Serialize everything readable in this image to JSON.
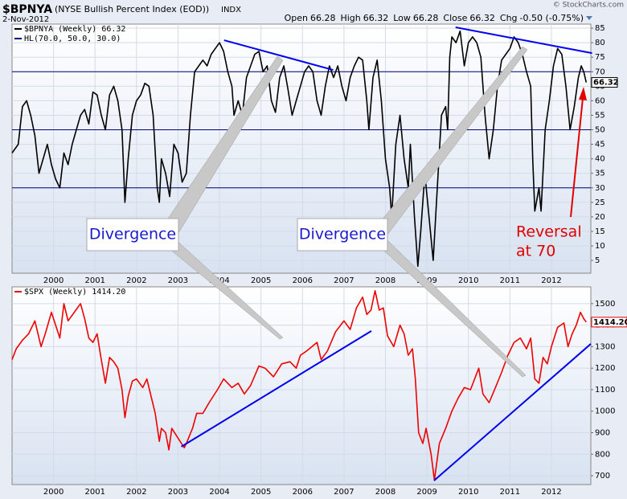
{
  "header": {
    "symbol": "$BPNYA",
    "name": "(NYSE Bullish Percent Index (EOD))",
    "exchange": "INDX",
    "date": "2-Nov-2012",
    "credit": "© StockCharts.com",
    "quote": [
      {
        "label": "Open",
        "value": "66.28"
      },
      {
        "label": "High",
        "value": "66.32"
      },
      {
        "label": "Low",
        "value": "66.28"
      },
      {
        "label": "Close",
        "value": "66.32"
      },
      {
        "label": "Chg",
        "value": "-0.50 (-0.75%)"
      }
    ]
  },
  "annotations": [
    {
      "text": "Divergence"
    },
    {
      "text": "Divergence"
    },
    {
      "lines": [
        "Reversal",
        "at 70"
      ]
    }
  ],
  "chart_data": [
    {
      "type": "line",
      "xlim": [
        1999.0,
        2012.95
      ],
      "xticks": [
        2000,
        2001,
        2002,
        2003,
        2004,
        2005,
        2006,
        2007,
        2008,
        2009,
        2010,
        2011,
        2012
      ],
      "ylim": [
        0.6,
        86.4
      ],
      "yticks": [
        5,
        10,
        15,
        20,
        25,
        30,
        35,
        40,
        45,
        50,
        55,
        60,
        65,
        70,
        75,
        80,
        85
      ],
      "grid": true,
      "x": [
        1999.0,
        1999.15,
        1999.25,
        1999.35,
        1999.45,
        1999.55,
        1999.65,
        1999.75,
        1999.85,
        1999.95,
        2000.05,
        2000.15,
        2000.25,
        2000.35,
        2000.45,
        2000.55,
        2000.65,
        2000.75,
        2000.85,
        2000.95,
        2001.05,
        2001.15,
        2001.25,
        2001.35,
        2001.45,
        2001.55,
        2001.65,
        2001.72,
        2001.8,
        2001.9,
        2002.0,
        2002.1,
        2002.2,
        2002.3,
        2002.4,
        2002.5,
        2002.55,
        2002.6,
        2002.7,
        2002.8,
        2002.9,
        2003.0,
        2003.1,
        2003.2,
        2003.3,
        2003.4,
        2003.5,
        2003.6,
        2003.7,
        2003.8,
        2003.9,
        2004.0,
        2004.1,
        2004.2,
        2004.3,
        2004.35,
        2004.45,
        2004.55,
        2004.65,
        2004.75,
        2004.85,
        2004.95,
        2005.05,
        2005.15,
        2005.25,
        2005.35,
        2005.45,
        2005.55,
        2005.65,
        2005.75,
        2005.85,
        2005.95,
        2006.05,
        2006.15,
        2006.25,
        2006.35,
        2006.45,
        2006.55,
        2006.65,
        2006.75,
        2006.85,
        2006.95,
        2007.05,
        2007.15,
        2007.25,
        2007.35,
        2007.45,
        2007.55,
        2007.6,
        2007.7,
        2007.8,
        2007.9,
        2008.0,
        2008.1,
        2008.15,
        2008.25,
        2008.35,
        2008.45,
        2008.55,
        2008.6,
        2008.7,
        2008.78,
        2008.85,
        2008.95,
        2009.05,
        2009.15,
        2009.25,
        2009.35,
        2009.45,
        2009.5,
        2009.55,
        2009.6,
        2009.7,
        2009.8,
        2009.9,
        2010.0,
        2010.1,
        2010.2,
        2010.3,
        2010.4,
        2010.5,
        2010.6,
        2010.7,
        2010.8,
        2010.9,
        2011.0,
        2011.1,
        2011.2,
        2011.3,
        2011.4,
        2011.5,
        2011.55,
        2011.6,
        2011.7,
        2011.75,
        2011.85,
        2011.95,
        2012.05,
        2012.15,
        2012.25,
        2012.35,
        2012.45,
        2012.55,
        2012.65,
        2012.72,
        2012.78,
        2012.84
      ],
      "series": [
        {
          "name": "$BPNYA (Weekly) 66.32",
          "color": "#000000",
          "end_label": "66.32",
          "values": [
            42,
            45,
            58,
            60,
            55,
            48,
            35,
            40,
            45,
            38,
            33,
            30,
            42,
            38,
            45,
            50,
            55,
            57,
            52,
            63,
            62,
            55,
            50,
            62,
            65,
            60,
            50,
            25,
            40,
            55,
            60,
            62,
            66,
            65,
            55,
            30,
            25,
            40,
            35,
            27,
            45,
            42,
            32,
            35,
            55,
            70,
            72,
            74,
            72,
            76,
            78,
            80,
            77,
            70,
            65,
            55,
            60,
            55,
            68,
            72,
            76,
            77,
            70,
            72,
            60,
            56,
            68,
            72,
            64,
            55,
            60,
            65,
            70,
            72,
            70,
            60,
            55,
            65,
            72,
            68,
            72,
            65,
            60,
            68,
            72,
            75,
            74,
            60,
            50,
            68,
            74,
            60,
            40,
            30,
            20,
            45,
            55,
            40,
            30,
            45,
            20,
            3,
            15,
            35,
            20,
            5,
            30,
            55,
            58,
            50,
            75,
            82,
            80,
            84,
            72,
            80,
            82,
            80,
            75,
            55,
            40,
            50,
            65,
            74,
            76,
            78,
            82,
            80,
            76,
            70,
            65,
            40,
            22,
            30,
            22,
            50,
            60,
            72,
            78,
            76,
            65,
            50,
            58,
            68,
            72,
            70,
            66.32
          ]
        }
      ],
      "hlines": {
        "name": "HL(70.0, 50.0, 30.0)",
        "color": "#00007a",
        "values": [
          70,
          50,
          30
        ]
      },
      "trendline_color": "#0000ee",
      "trendlines": [
        {
          "x": [
            2004.11,
            2006.74
          ],
          "values": [
            80.85,
            70.6
          ]
        },
        {
          "x": [
            2009.69,
            2012.98
          ],
          "values": [
            85.3,
            76.4
          ]
        }
      ]
    },
    {
      "type": "line",
      "xlim": [
        1999.0,
        2012.95
      ],
      "xticks": [
        2000,
        2001,
        2002,
        2003,
        2004,
        2005,
        2006,
        2007,
        2008,
        2009,
        2010,
        2011,
        2012
      ],
      "ylim": [
        659,
        1578
      ],
      "yticks": [
        700,
        800,
        900,
        1000,
        1100,
        1200,
        1300,
        1400,
        1500
      ],
      "grid": true,
      "x": [
        1999.0,
        1999.1,
        1999.25,
        1999.4,
        1999.55,
        1999.7,
        1999.8,
        1999.95,
        2000.05,
        2000.15,
        2000.25,
        2000.35,
        2000.5,
        2000.65,
        2000.75,
        2000.85,
        2000.95,
        2001.05,
        2001.15,
        2001.25,
        2001.35,
        2001.45,
        2001.55,
        2001.65,
        2001.72,
        2001.8,
        2001.9,
        2002.0,
        2002.15,
        2002.25,
        2002.35,
        2002.45,
        2002.55,
        2002.6,
        2002.7,
        2002.78,
        2002.85,
        2002.95,
        2003.05,
        2003.15,
        2003.2,
        2003.35,
        2003.45,
        2003.6,
        2003.75,
        2003.95,
        2004.1,
        2004.3,
        2004.45,
        2004.6,
        2004.75,
        2004.95,
        2005.1,
        2005.3,
        2005.5,
        2005.7,
        2005.85,
        2005.95,
        2006.1,
        2006.35,
        2006.45,
        2006.6,
        2006.8,
        2007.0,
        2007.15,
        2007.3,
        2007.45,
        2007.55,
        2007.65,
        2007.75,
        2007.85,
        2007.95,
        2008.05,
        2008.2,
        2008.35,
        2008.45,
        2008.55,
        2008.65,
        2008.72,
        2008.8,
        2008.9,
        2008.98,
        2009.1,
        2009.18,
        2009.3,
        2009.45,
        2009.6,
        2009.75,
        2009.9,
        2010.05,
        2010.25,
        2010.35,
        2010.5,
        2010.65,
        2010.8,
        2010.95,
        2011.1,
        2011.25,
        2011.4,
        2011.5,
        2011.6,
        2011.7,
        2011.8,
        2011.9,
        2012.0,
        2012.15,
        2012.3,
        2012.4,
        2012.5,
        2012.6,
        2012.7,
        2012.78,
        2012.84
      ],
      "series": [
        {
          "name": "$SPX (Weekly) 1414.20",
          "color": "#ee0000",
          "end_label": "1414.20",
          "values": [
            1240,
            1290,
            1330,
            1360,
            1420,
            1300,
            1360,
            1460,
            1400,
            1340,
            1500,
            1420,
            1460,
            1500,
            1430,
            1340,
            1320,
            1360,
            1240,
            1130,
            1250,
            1230,
            1200,
            1100,
            970,
            1070,
            1140,
            1150,
            1110,
            1150,
            1070,
            990,
            860,
            920,
            900,
            820,
            920,
            890,
            860,
            830,
            850,
            920,
            990,
            990,
            1040,
            1100,
            1150,
            1110,
            1130,
            1080,
            1120,
            1210,
            1200,
            1160,
            1220,
            1230,
            1200,
            1260,
            1280,
            1320,
            1240,
            1280,
            1370,
            1420,
            1380,
            1480,
            1530,
            1450,
            1470,
            1560,
            1470,
            1480,
            1350,
            1300,
            1400,
            1360,
            1260,
            1290,
            1150,
            900,
            850,
            920,
            800,
            680,
            850,
            920,
            1000,
            1060,
            1110,
            1100,
            1200,
            1080,
            1040,
            1110,
            1180,
            1260,
            1320,
            1340,
            1290,
            1340,
            1150,
            1130,
            1250,
            1220,
            1300,
            1390,
            1410,
            1300,
            1360,
            1400,
            1460,
            1430,
            1414.2
          ]
        }
      ],
      "trendline_color": "#0000ee",
      "trendlines": [
        {
          "x": [
            2003.08,
            2007.66
          ],
          "values": [
            835,
            1373
          ]
        },
        {
          "x": [
            2009.17,
            2012.95
          ],
          "values": [
            677,
            1313
          ]
        }
      ]
    }
  ]
}
